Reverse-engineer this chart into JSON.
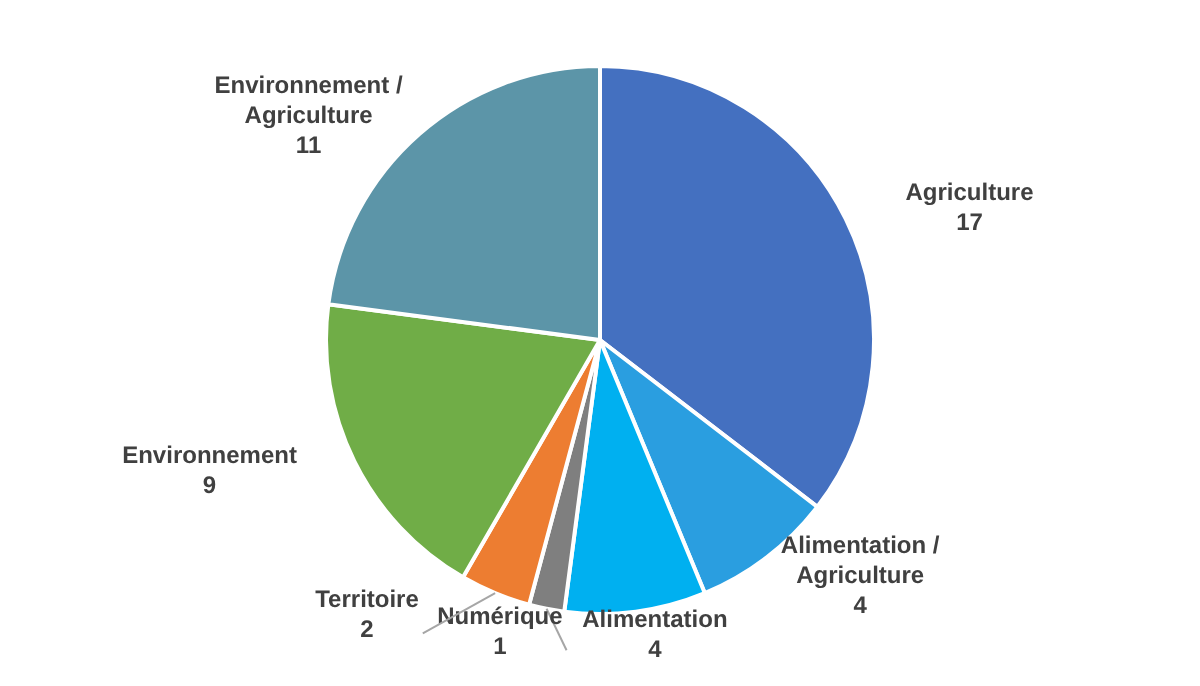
{
  "chart_data": {
    "type": "pie",
    "categories": [
      "Agriculture",
      "Alimentation / Agriculture",
      "Alimentation",
      "Numérique",
      "Territoire",
      "Environnement",
      "Environnement / Agriculture"
    ],
    "values": [
      17,
      4,
      4,
      1,
      2,
      9,
      11
    ],
    "colors": [
      "#4470c0",
      "#2a9ee0",
      "#00b0f0",
      "#7f7f7f",
      "#ed7d31",
      "#70ad47",
      "#5c95a8"
    ],
    "data_labels": true,
    "legend": false
  }
}
